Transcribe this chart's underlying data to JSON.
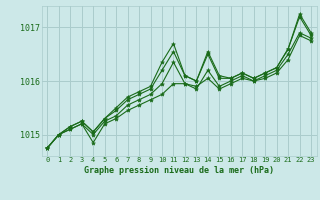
{
  "bg_color": "#cce8e8",
  "grid_color": "#aacccc",
  "line_color": "#1a6b1a",
  "marker_color": "#1a6b1a",
  "title": "Graphe pression niveau de la mer (hPa)",
  "title_color": "#1a6b1a",
  "xlim": [
    -0.5,
    23.5
  ],
  "ylim": [
    1014.6,
    1017.4
  ],
  "yticks": [
    1015,
    1016,
    1017
  ],
  "xticks": [
    0,
    1,
    2,
    3,
    4,
    5,
    6,
    7,
    8,
    9,
    10,
    11,
    12,
    13,
    14,
    15,
    16,
    17,
    18,
    19,
    20,
    21,
    22,
    23
  ],
  "series": [
    [
      1014.75,
      1015.0,
      1015.1,
      1015.2,
      1014.85,
      1015.2,
      1015.3,
      1015.45,
      1015.55,
      1015.65,
      1015.75,
      1015.95,
      1015.95,
      1015.9,
      1016.05,
      1015.85,
      1015.95,
      1016.05,
      1016.0,
      1016.05,
      1016.15,
      1016.4,
      1016.85,
      1016.75
    ],
    [
      1014.75,
      1015.0,
      1015.1,
      1015.2,
      1015.0,
      1015.25,
      1015.35,
      1015.55,
      1015.65,
      1015.75,
      1015.95,
      1016.35,
      1015.95,
      1015.85,
      1016.2,
      1015.9,
      1016.0,
      1016.1,
      1016.0,
      1016.1,
      1016.2,
      1016.5,
      1016.9,
      1016.8
    ],
    [
      1014.75,
      1015.0,
      1015.15,
      1015.25,
      1015.05,
      1015.3,
      1015.45,
      1015.65,
      1015.75,
      1015.85,
      1016.2,
      1016.55,
      1016.1,
      1016.0,
      1016.5,
      1016.05,
      1016.05,
      1016.15,
      1016.05,
      1016.15,
      1016.25,
      1016.6,
      1017.2,
      1016.85
    ],
    [
      1014.75,
      1015.0,
      1015.15,
      1015.25,
      1015.05,
      1015.3,
      1015.5,
      1015.7,
      1015.8,
      1015.9,
      1016.35,
      1016.7,
      1016.1,
      1016.0,
      1016.55,
      1016.1,
      1016.05,
      1016.15,
      1016.05,
      1016.15,
      1016.25,
      1016.6,
      1017.25,
      1016.9
    ]
  ]
}
